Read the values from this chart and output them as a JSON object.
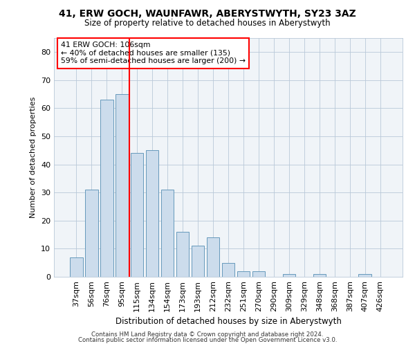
{
  "title1": "41, ERW GOCH, WAUNFAWR, ABERYSTWYTH, SY23 3AZ",
  "title2": "Size of property relative to detached houses in Aberystwyth",
  "xlabel": "Distribution of detached houses by size in Aberystwyth",
  "ylabel": "Number of detached properties",
  "categories": [
    "37sqm",
    "56sqm",
    "76sqm",
    "95sqm",
    "115sqm",
    "134sqm",
    "154sqm",
    "173sqm",
    "193sqm",
    "212sqm",
    "232sqm",
    "251sqm",
    "270sqm",
    "290sqm",
    "309sqm",
    "329sqm",
    "348sqm",
    "368sqm",
    "387sqm",
    "407sqm",
    "426sqm"
  ],
  "values": [
    7,
    31,
    63,
    65,
    44,
    45,
    31,
    16,
    11,
    14,
    5,
    2,
    2,
    0,
    1,
    0,
    1,
    0,
    0,
    1,
    0
  ],
  "bar_color": "#ccdcec",
  "bar_edge_color": "#6699bb",
  "red_line_x": 3.5,
  "annotation_line1": "41 ERW GOCH: 106sqm",
  "annotation_line2": "← 40% of detached houses are smaller (135)",
  "annotation_line3": "59% of semi-detached houses are larger (200) →",
  "annotation_box_color": "white",
  "annotation_box_edge": "red",
  "ylim": [
    0,
    85
  ],
  "yticks": [
    0,
    10,
    20,
    30,
    40,
    50,
    60,
    70,
    80
  ],
  "footer1": "Contains HM Land Registry data © Crown copyright and database right 2024.",
  "footer2": "Contains public sector information licensed under the Open Government Licence v3.0.",
  "background_color": "#ffffff",
  "plot_bg_color": "#f0f4f8"
}
